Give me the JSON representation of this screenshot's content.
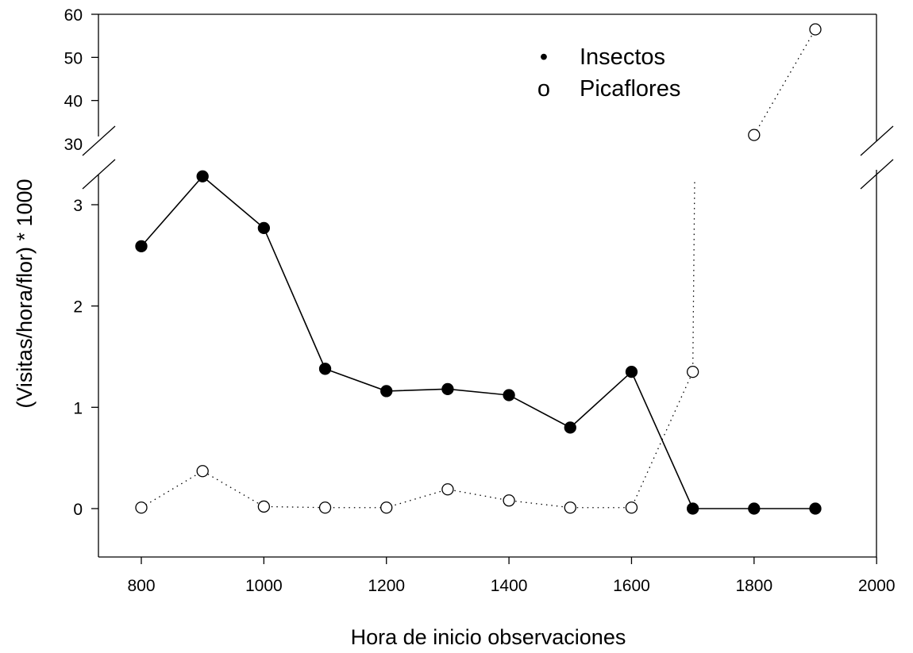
{
  "chart_data": {
    "type": "line",
    "xlabel": "Hora de inicio observaciones",
    "ylabel": "(Visitas/hora/flor) * 1000",
    "xlim": [
      735,
      2000
    ],
    "x_ticks": [
      800,
      1000,
      1200,
      1400,
      1600,
      1800,
      2000
    ],
    "y_axis_break": true,
    "ylim_lower": [
      -0.5,
      3.4
    ],
    "ylim_upper": [
      30,
      60
    ],
    "y_ticks_lower": [
      0,
      1,
      2,
      3
    ],
    "y_ticks_upper": [
      30,
      40,
      50,
      60
    ],
    "legend_position": "top-center",
    "series": [
      {
        "name": "Insectos",
        "legend_symbol": "•",
        "marker": "filled-circle",
        "line_style": "solid",
        "x": [
          800,
          900,
          1000,
          1100,
          1200,
          1300,
          1400,
          1500,
          1600,
          1700,
          1800,
          1900
        ],
        "y": [
          2.59,
          3.28,
          2.77,
          1.38,
          1.16,
          1.18,
          1.12,
          0.8,
          1.35,
          0,
          0,
          0
        ]
      },
      {
        "name": "Picaflores",
        "legend_symbol": "o",
        "marker": "open-circle",
        "line_style": "dotted",
        "x": [
          800,
          900,
          1000,
          1100,
          1200,
          1300,
          1400,
          1500,
          1600,
          1700,
          1800,
          1900
        ],
        "y": [
          0.01,
          0.37,
          0.02,
          0.01,
          0.01,
          0.19,
          0.08,
          0.01,
          0.01,
          1.35,
          32,
          56.5
        ]
      }
    ]
  }
}
